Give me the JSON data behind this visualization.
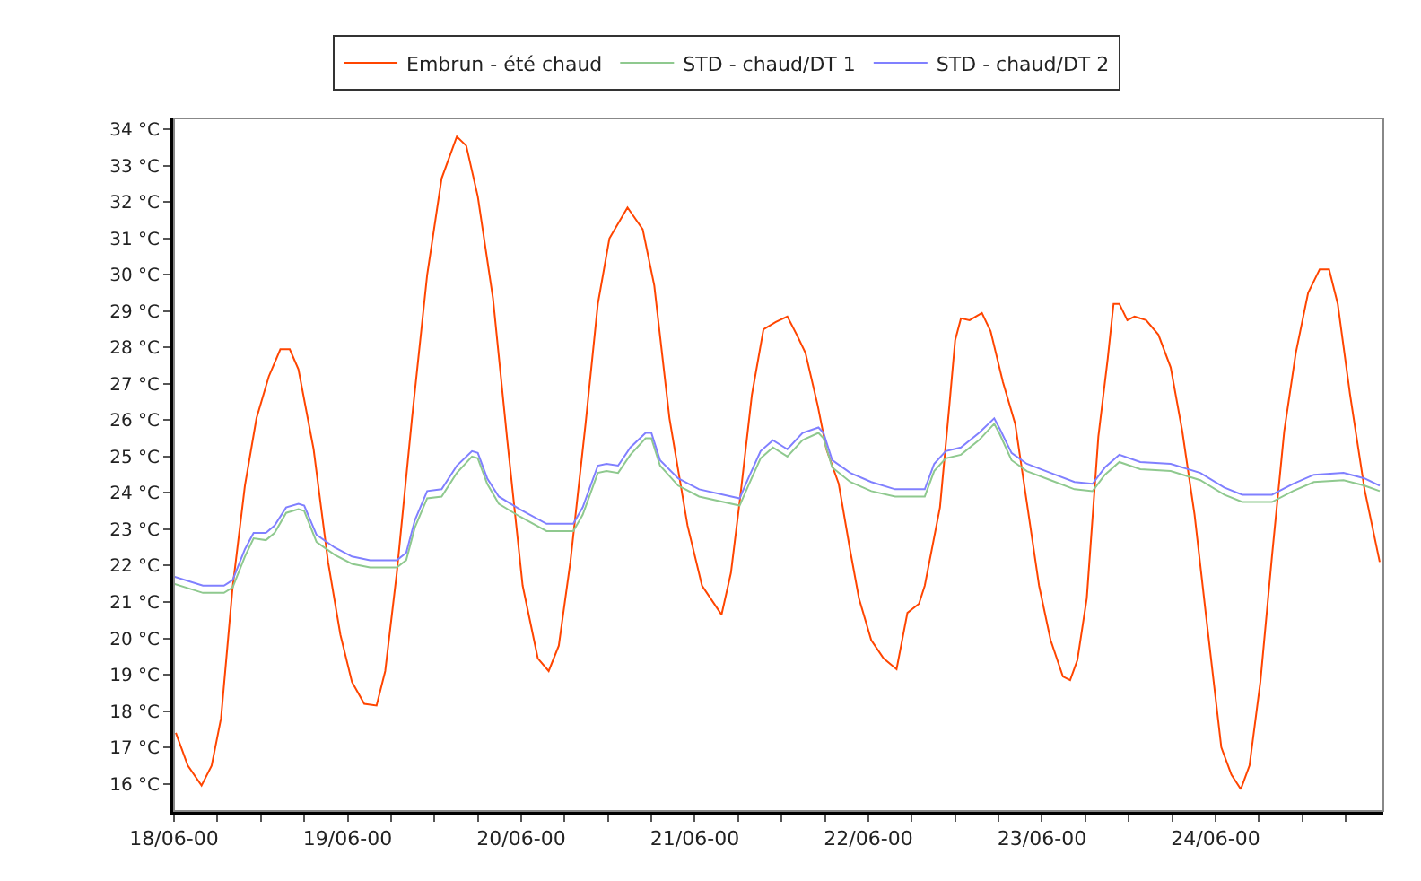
{
  "chart_data": {
    "type": "line",
    "legend": "top",
    "grid": false,
    "marker": "none",
    "line_style": "solid",
    "xlim": [
      "--06-18T00:00",
      "--06-24T23:12"
    ],
    "ylim": [
      15.25,
      34.3
    ],
    "xticks": [
      {
        "value": "--06-18T00:00",
        "label": "18/06-00"
      },
      {
        "value": "--06-18T06:00",
        "label": null
      },
      {
        "value": "--06-18T12:00",
        "label": null
      },
      {
        "value": "--06-18T18:00",
        "label": null
      },
      {
        "value": "--06-19T00:00",
        "label": "19/06-00"
      },
      {
        "value": "--06-19T06:00",
        "label": null
      },
      {
        "value": "--06-19T12:00",
        "label": null
      },
      {
        "value": "--06-19T18:00",
        "label": null
      },
      {
        "value": "--06-20T00:00",
        "label": "20/06-00"
      },
      {
        "value": "--06-20T06:00",
        "label": null
      },
      {
        "value": "--06-20T12:00",
        "label": null
      },
      {
        "value": "--06-20T18:00",
        "label": null
      },
      {
        "value": "--06-21T00:00",
        "label": "21/06-00"
      },
      {
        "value": "--06-21T06:00",
        "label": null
      },
      {
        "value": "--06-21T12:00",
        "label": null
      },
      {
        "value": "--06-21T18:00",
        "label": null
      },
      {
        "value": "--06-22T00:00",
        "label": "22/06-00"
      },
      {
        "value": "--06-22T06:00",
        "label": null
      },
      {
        "value": "--06-22T12:00",
        "label": null
      },
      {
        "value": "--06-22T18:00",
        "label": null
      },
      {
        "value": "--06-23T00:00",
        "label": "23/06-00"
      },
      {
        "value": "--06-23T06:00",
        "label": null
      },
      {
        "value": "--06-23T12:00",
        "label": null
      },
      {
        "value": "--06-23T18:00",
        "label": null
      },
      {
        "value": "--06-24T00:00",
        "label": "24/06-00"
      },
      {
        "value": "--06-24T06:00",
        "label": null
      },
      {
        "value": "--06-24T12:00",
        "label": null
      },
      {
        "value": "--06-24T18:00",
        "label": null
      }
    ],
    "yticks": [
      {
        "value": 16,
        "label": "16 °C"
      },
      {
        "value": 17,
        "label": "17 °C"
      },
      {
        "value": 18,
        "label": "18 °C"
      },
      {
        "value": 19,
        "label": "19 °C"
      },
      {
        "value": 20,
        "label": "20 °C"
      },
      {
        "value": 21,
        "label": "21 °C"
      },
      {
        "value": 22,
        "label": "22 °C"
      },
      {
        "value": 23,
        "label": "23 °C"
      },
      {
        "value": 24,
        "label": "24 °C"
      },
      {
        "value": 25,
        "label": "25 °C"
      },
      {
        "value": 26,
        "label": "26 °C"
      },
      {
        "value": 27,
        "label": "27 °C"
      },
      {
        "value": 28,
        "label": "28 °C"
      },
      {
        "value": 29,
        "label": "29 °C"
      },
      {
        "value": 30,
        "label": "30 °C"
      },
      {
        "value": 31,
        "label": "31 °C"
      },
      {
        "value": 32,
        "label": "32 °C"
      },
      {
        "value": 33,
        "label": "33 °C"
      },
      {
        "value": 34,
        "label": "34 °C"
      }
    ],
    "x": [
      "--06-18T00:00",
      "--06-18T04:00",
      "--06-18T06:54",
      "--06-18T08:06",
      "--06-18T09:48",
      "--06-18T11:00",
      "--06-18T12:42",
      "--06-18T13:54",
      "--06-18T15:30",
      "--06-18T17:12",
      "--06-18T18:00",
      "--06-18T19:42",
      "--06-18T22:12",
      "--06-19T00:36",
      "--06-19T03:06",
      "--06-19T06:48",
      "--06-19T08:06",
      "--06-19T09:18",
      "--06-19T11:00",
      "--06-19T13:00",
      "--06-19T15:06",
      "--06-19T17:12",
      "--06-19T18:00",
      "--06-19T19:18",
      "--06-19T20:54",
      "--06-19T23:48",
      "--06-20T03:30",
      "--06-20T07:12",
      "--06-20T08:30",
      "--06-20T10:36",
      "--06-20T11:48",
      "--06-20T13:24",
      "--06-20T15:06",
      "--06-20T17:12",
      "--06-20T18:00",
      "--06-20T19:12",
      "--06-20T21:42",
      "--06-21T00:36",
      "--06-21T06:12",
      "--06-21T07:24",
      "--06-21T09:06",
      "--06-21T10:48",
      "--06-21T12:48",
      "--06-21T14:54",
      "--06-21T17:06",
      "--06-21T17:48",
      "--06-21T19:00",
      "--06-21T21:30",
      "--06-22T00:24",
      "--06-22T03:42",
      "--06-22T07:48",
      "--06-22T09:06",
      "--06-22T10:42",
      "--06-22T12:48",
      "--06-22T15:18",
      "--06-22T17:24",
      "--06-22T18:12",
      "--06-22T19:48",
      "--06-22T21:54",
      "--06-23T01:12",
      "--06-23T04:30",
      "--06-23T07:00",
      "--06-23T08:42",
      "--06-23T10:42",
      "--06-23T13:36",
      "--06-23T17:48",
      "--06-23T21:54",
      "--06-24T01:12",
      "--06-24T03:42",
      "--06-24T07:48",
      "--06-24T10:42",
      "--06-24T13:36",
      "--06-24T17:42",
      "--06-24T20:36",
      "--06-24T22:42"
    ],
    "series": [
      {
        "name": "Embrun - été chaud",
        "color": "#ff4500",
        "x": [
          "--06-18T00:15",
          "--06-18T01:54",
          "--06-18T03:48",
          "--06-18T05:12",
          "--06-18T06:30",
          "--06-18T08:06",
          "--06-18T09:48",
          "--06-18T11:24",
          "--06-18T13:06",
          "--06-18T14:42",
          "--06-18T16:00",
          "--06-18T17:12",
          "--06-18T19:18",
          "--06-18T21:18",
          "--06-18T23:00",
          "--06-19T00:36",
          "--06-19T02:18",
          "--06-19T04:00",
          "--06-19T05:12",
          "--06-19T06:48",
          "--06-19T08:54",
          "--06-19T11:00",
          "--06-19T13:00",
          "--06-19T15:06",
          "--06-19T16:24",
          "--06-19T18:00",
          "--06-19T20:06",
          "--06-19T22:06",
          "--06-20T00:12",
          "--06-20T02:18",
          "--06-20T03:48",
          "--06-20T05:12",
          "--06-20T06:48",
          "--06-20T08:54",
          "--06-20T10:36",
          "--06-20T12:12",
          "--06-20T14:42",
          "--06-20T16:48",
          "--06-20T18:24",
          "--06-20T20:30",
          "--06-20T23:00",
          "--06-21T01:00",
          "--06-21T03:42",
          "--06-21T05:00",
          "--06-21T06:12",
          "--06-21T07:54",
          "--06-21T09:30",
          "--06-21T11:12",
          "--06-21T12:48",
          "--06-21T14:06",
          "--06-21T15:18",
          "--06-21T17:00",
          "--06-21T18:12",
          "--06-21T19:54",
          "--06-21T21:30",
          "--06-21T22:42",
          "--06-22T00:24",
          "--06-22T02:06",
          "--06-22T03:54",
          "--06-22T05:24",
          "--06-22T07:00",
          "--06-22T07:48",
          "--06-22T09:54",
          "--06-22T11:12",
          "--06-22T12:00",
          "--06-22T12:48",
          "--06-22T14:00",
          "--06-22T15:42",
          "--06-22T16:54",
          "--06-22T18:36",
          "--06-22T20:18",
          "--06-22T21:54",
          "--06-22T23:36",
          "--06-23T01:12",
          "--06-23T02:54",
          "--06-23T03:54",
          "--06-23T04:54",
          "--06-23T06:12",
          "--06-23T07:48",
          "--06-23T09:06",
          "--06-23T09:54",
          "--06-23T10:42",
          "--06-23T11:48",
          "--06-23T12:48",
          "--06-23T14:24",
          "--06-23T16:06",
          "--06-23T17:48",
          "--06-23T19:24",
          "--06-23T21:06",
          "--06-23T22:42",
          "--06-24T00:48",
          "--06-24T02:12",
          "--06-24T03:30",
          "--06-24T04:42",
          "--06-24T06:12",
          "--06-24T07:48",
          "--06-24T09:30",
          "--06-24T11:06",
          "--06-24T12:48",
          "--06-24T14:24",
          "--06-24T15:42",
          "--06-24T16:54",
          "--06-24T18:36",
          "--06-24T20:36",
          "--06-24T22:42"
        ],
        "values": [
          17.4,
          16.5,
          15.95,
          16.5,
          17.8,
          21.4,
          24.2,
          26.05,
          27.2,
          27.95,
          27.95,
          27.4,
          25.2,
          22.1,
          20.1,
          18.8,
          18.2,
          18.15,
          19.1,
          21.8,
          26.05,
          30.0,
          32.65,
          33.8,
          33.55,
          32.15,
          29.35,
          25.4,
          21.45,
          19.45,
          19.1,
          19.8,
          22.1,
          25.9,
          29.2,
          31.0,
          31.85,
          31.25,
          29.7,
          26.05,
          23.1,
          21.45,
          20.65,
          21.8,
          23.75,
          26.7,
          28.5,
          28.7,
          28.85,
          28.35,
          27.85,
          26.4,
          25.2,
          24.25,
          22.4,
          21.1,
          19.95,
          19.45,
          19.15,
          20.7,
          20.95,
          21.45,
          23.6,
          26.4,
          28.2,
          28.8,
          28.75,
          28.95,
          28.45,
          27.05,
          25.9,
          23.75,
          21.45,
          19.95,
          18.95,
          18.85,
          19.4,
          21.1,
          25.55,
          27.7,
          29.2,
          29.2,
          28.75,
          28.85,
          28.75,
          28.35,
          27.45,
          25.7,
          23.4,
          20.6,
          17.0,
          16.25,
          15.85,
          16.5,
          18.8,
          22.25,
          25.7,
          27.85,
          29.5,
          30.15,
          30.15,
          29.2,
          26.7,
          24.1,
          22.1
        ]
      },
      {
        "name": "STD - chaud/DT 1",
        "color": "#8fc98f",
        "values": [
          21.5,
          21.25,
          21.25,
          21.4,
          22.25,
          22.75,
          22.7,
          22.9,
          23.45,
          23.55,
          23.5,
          22.65,
          22.3,
          22.05,
          21.95,
          21.95,
          22.15,
          23.05,
          23.85,
          23.9,
          24.55,
          25.0,
          24.95,
          24.25,
          23.7,
          23.35,
          22.95,
          22.95,
          23.4,
          24.55,
          24.6,
          24.55,
          25.05,
          25.5,
          25.5,
          24.75,
          24.2,
          23.9,
          23.65,
          24.2,
          24.95,
          25.25,
          25.0,
          25.45,
          25.65,
          25.5,
          24.7,
          24.3,
          24.05,
          23.9,
          23.9,
          24.6,
          24.95,
          25.05,
          25.45,
          25.9,
          25.6,
          24.9,
          24.6,
          24.35,
          24.1,
          24.05,
          24.5,
          24.85,
          24.65,
          24.6,
          24.35,
          23.95,
          23.75,
          23.75,
          24.05,
          24.3,
          24.35,
          24.2,
          24.05
        ]
      },
      {
        "name": "STD - chaud/DT 2",
        "color": "#8080ff",
        "values": [
          21.7,
          21.45,
          21.45,
          21.6,
          22.45,
          22.9,
          22.9,
          23.1,
          23.6,
          23.7,
          23.65,
          22.85,
          22.5,
          22.25,
          22.15,
          22.15,
          22.35,
          23.25,
          24.05,
          24.1,
          24.75,
          25.15,
          25.1,
          24.4,
          23.9,
          23.55,
          23.15,
          23.15,
          23.6,
          24.75,
          24.8,
          24.75,
          25.25,
          25.65,
          25.65,
          24.9,
          24.4,
          24.1,
          23.85,
          24.4,
          25.15,
          25.45,
          25.2,
          25.65,
          25.8,
          25.65,
          24.9,
          24.55,
          24.3,
          24.1,
          24.1,
          24.8,
          25.15,
          25.25,
          25.65,
          26.05,
          25.75,
          25.1,
          24.8,
          24.55,
          24.3,
          24.25,
          24.7,
          25.05,
          24.85,
          24.8,
          24.55,
          24.15,
          23.95,
          23.95,
          24.25,
          24.5,
          24.55,
          24.4,
          24.2
        ]
      }
    ]
  }
}
